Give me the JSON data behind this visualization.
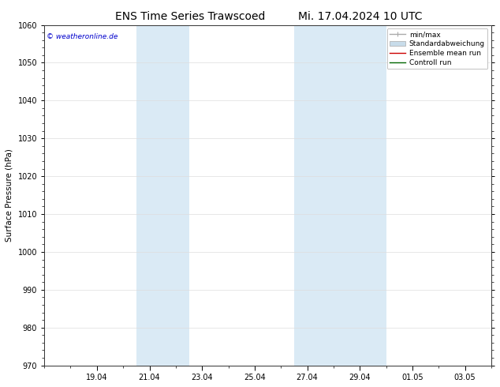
{
  "title_left": "ENS Time Series Trawscoed",
  "title_right": "Mi. 17.04.2024 10 UTC",
  "ylabel": "Surface Pressure (hPa)",
  "ylim": [
    970,
    1060
  ],
  "yticks": [
    970,
    980,
    990,
    1000,
    1010,
    1020,
    1030,
    1040,
    1050,
    1060
  ],
  "x_tick_labels": [
    "19.04",
    "21.04",
    "23.04",
    "25.04",
    "27.04",
    "29.04",
    "01.05",
    "03.05"
  ],
  "x_tick_positions": [
    2,
    4,
    6,
    8,
    10,
    12,
    14,
    16
  ],
  "xlim": [
    0,
    17
  ],
  "shaded_bands": [
    {
      "xmin": 3.5,
      "xmax": 5.5
    },
    {
      "xmin": 9.5,
      "xmax": 13.0
    }
  ],
  "shade_color": "#daeaf5",
  "watermark": "© weatheronline.de",
  "legend_items": [
    {
      "label": "min/max",
      "color": "#aaaaaa",
      "lw": 1.0,
      "style": "minmax"
    },
    {
      "label": "Standardabweichung",
      "color": "#c8dcea",
      "lw": 5,
      "style": "fill"
    },
    {
      "label": "Ensemble mean run",
      "color": "#cc0000",
      "lw": 1.0,
      "style": "line"
    },
    {
      "label": "Controll run",
      "color": "#006600",
      "lw": 1.0,
      "style": "line"
    }
  ],
  "bg_color": "#ffffff",
  "grid_color": "#dddddd",
  "title_fontsize": 10,
  "label_fontsize": 7.5,
  "tick_fontsize": 7,
  "legend_fontsize": 6.5
}
